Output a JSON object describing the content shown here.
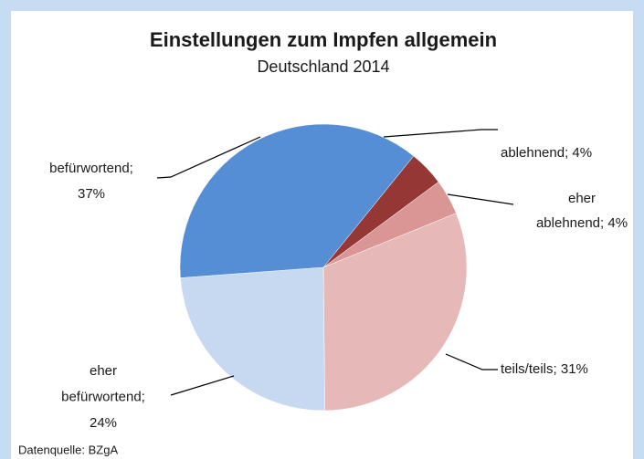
{
  "chart_data": {
    "type": "pie",
    "title": "Einstellungen zum Impfen allgemein",
    "subtitle": "Deutschland 2014",
    "values": [
      4,
      4,
      31,
      24,
      37
    ],
    "value_labels": [
      [
        "ablehnend; 4%"
      ],
      [
        "eher",
        "ablehnend; 4%"
      ],
      [
        "teils/teils; 31%"
      ],
      [
        "eher",
        "befürwortend;",
        "24%"
      ],
      [
        "befürwortend;",
        "37%"
      ]
    ],
    "colors": [
      "#953735",
      "#d99694",
      "#e6b9b8",
      "#c6d9f1",
      "#558ed5"
    ],
    "source": "Datenquelle: BZgA"
  }
}
